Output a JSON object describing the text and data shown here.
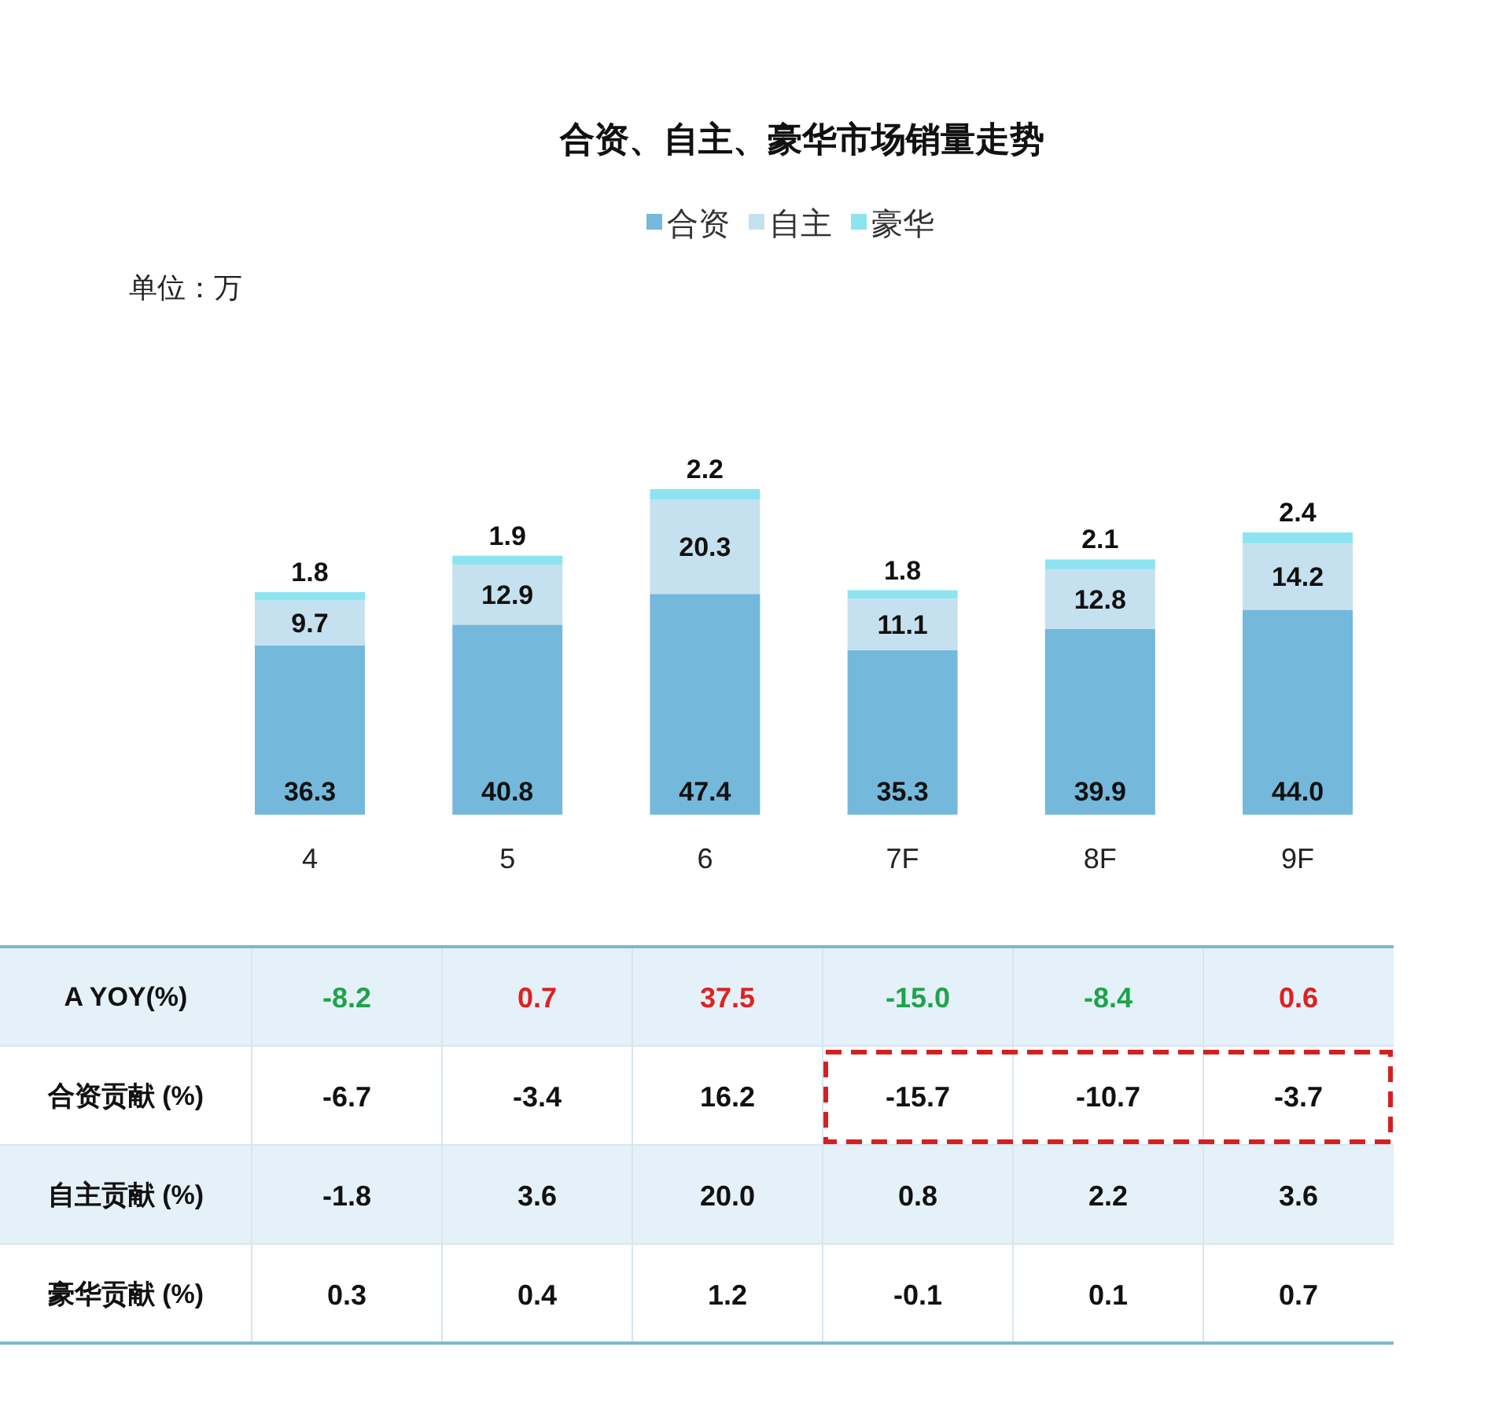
{
  "chart_data": [
    {
      "type": "bar",
      "title": "合资、自主、豪华市场销量走势",
      "stacked": true,
      "legend": "top",
      "annotations": [
        "单位：万"
      ],
      "categories": [
        "4",
        "5",
        "6",
        "7F",
        "8F",
        "9F"
      ],
      "series": [
        {
          "name": "合资",
          "color": "#74b9dc",
          "values": [
            36.3,
            40.8,
            47.4,
            35.3,
            39.9,
            44.0
          ],
          "value_labels": [
            "36.3",
            "40.8",
            "47.4",
            "35.3",
            "39.9",
            "44.0"
          ]
        },
        {
          "name": "自主",
          "color": "#c5e1ef",
          "values": [
            9.7,
            12.9,
            20.3,
            11.1,
            12.8,
            14.2
          ],
          "value_labels": [
            "9.7",
            "12.9",
            "20.3",
            "11.1",
            "12.8",
            "14.2"
          ]
        },
        {
          "name": "豪华",
          "color": "#8de4f0",
          "values": [
            1.8,
            1.9,
            2.2,
            1.8,
            2.1,
            2.4
          ],
          "value_labels": [
            "1.8",
            "1.9",
            "2.2",
            "1.8",
            "2.1",
            "2.4"
          ]
        }
      ]
    },
    {
      "type": "other",
      "y_categories": [
        "A YOY(%)",
        "合资贡献 (%)",
        "自主贡献 (%)",
        "豪华贡献 (%)"
      ],
      "cells": [
        [
          "-8.2",
          "0.7",
          "37.5",
          "-15.0",
          "-8.4",
          "0.6"
        ],
        [
          "-6.7",
          "-3.4",
          "16.2",
          "-15.7",
          "-10.7",
          "-3.7"
        ],
        [
          "-1.8",
          "3.6",
          "20.0",
          "0.8",
          "2.2",
          "3.6"
        ],
        [
          "0.3",
          "0.4",
          "1.2",
          "-0.1",
          "0.1",
          "0.7"
        ]
      ]
    }
  ]
}
